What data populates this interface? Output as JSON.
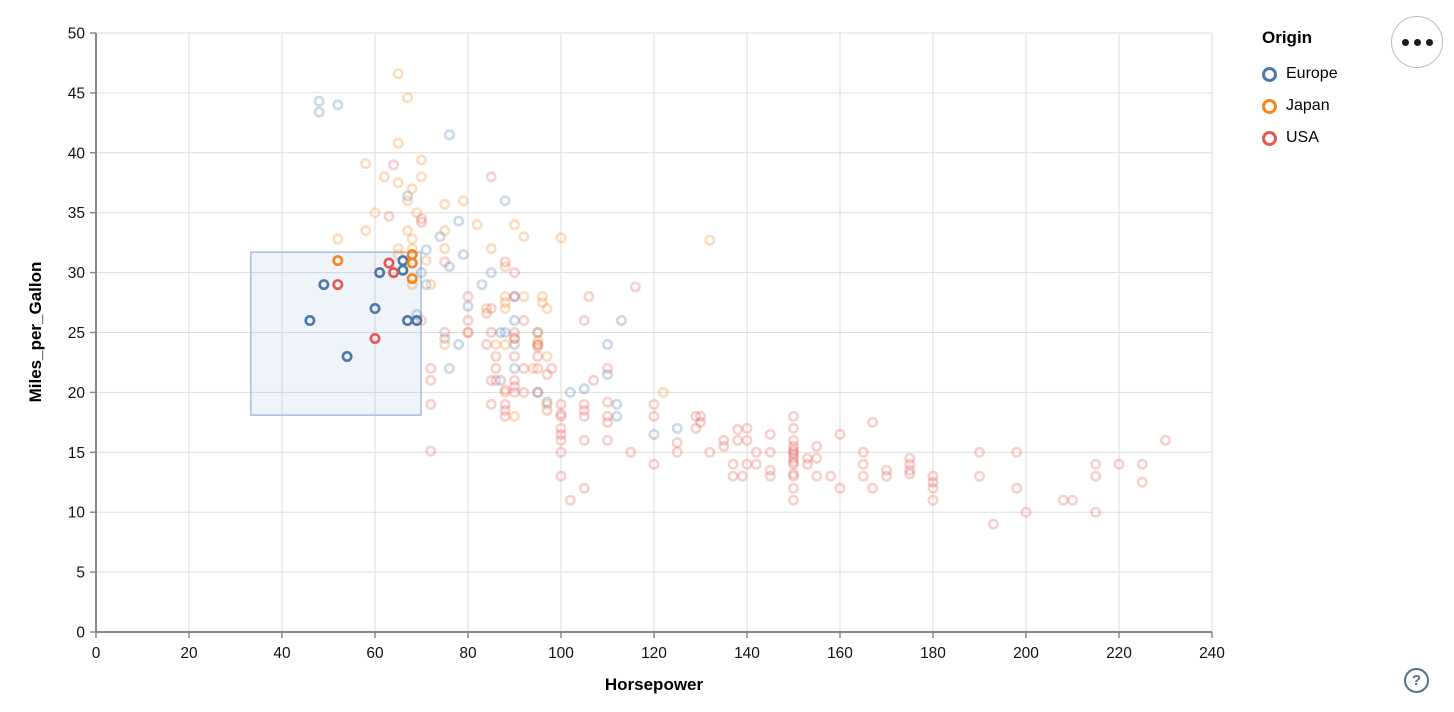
{
  "legend": {
    "title": "Origin",
    "items": [
      {
        "label": "Europe",
        "color": "#4c78a8"
      },
      {
        "label": "Japan",
        "color": "#f58518"
      },
      {
        "label": "USA",
        "color": "#e45756"
      }
    ]
  },
  "actions": {
    "menu_icon": "ellipsis",
    "help_icon": "?"
  },
  "chart_data": {
    "type": "scatter",
    "title": "",
    "xlabel": "Horsepower",
    "ylabel": "Miles_per_Gallon",
    "xlim": [
      0,
      240
    ],
    "ylim": [
      0,
      50
    ],
    "x_ticks": [
      0,
      20,
      40,
      60,
      80,
      100,
      120,
      140,
      160,
      180,
      200,
      220,
      240
    ],
    "y_ticks": [
      0,
      5,
      10,
      15,
      20,
      25,
      30,
      35,
      40,
      45,
      50
    ],
    "grid": true,
    "legend_position": "top-right",
    "point_shape": "open-circle",
    "unselected_opacity": 0.28,
    "colors": {
      "Europe": "#4c78a8",
      "Japan": "#f58518",
      "USA": "#e45756"
    },
    "grid_color": "#dddddd",
    "axis_color": "#888888",
    "brush": {
      "x": [
        33.3,
        69.9
      ],
      "y": [
        18.1,
        31.7
      ],
      "fill": "rgba(125,160,215,0.12)",
      "stroke": "#a9bfe4"
    },
    "series": [
      {
        "name": "Europe",
        "selected": [
          [
            46,
            26
          ],
          [
            49,
            29
          ],
          [
            54,
            23
          ],
          [
            60,
            27
          ],
          [
            61,
            30
          ],
          [
            66,
            31
          ],
          [
            66,
            30.2
          ],
          [
            67,
            26
          ],
          [
            69,
            26
          ]
        ],
        "unselected": [
          [
            87,
            25
          ],
          [
            90,
            24
          ],
          [
            95,
            25
          ],
          [
            113,
            26
          ],
          [
            90,
            28
          ],
          [
            70,
            30
          ],
          [
            76,
            30.5
          ],
          [
            112,
            18
          ],
          [
            76,
            22
          ],
          [
            87,
            21
          ],
          [
            69,
            26.5
          ],
          [
            90,
            26
          ],
          [
            75,
            24.5
          ],
          [
            83,
            29
          ],
          [
            78,
            24
          ],
          [
            110,
            24
          ],
          [
            95,
            20
          ],
          [
            112,
            19
          ],
          [
            48,
            43.4
          ],
          [
            48,
            44.3
          ],
          [
            52,
            44
          ],
          [
            76,
            41.5
          ],
          [
            71,
            29
          ],
          [
            88,
            25
          ],
          [
            90,
            22
          ],
          [
            125,
            17
          ],
          [
            120,
            16.5
          ],
          [
            78,
            34.3
          ],
          [
            74,
            33
          ],
          [
            97,
            19.2
          ],
          [
            110,
            21.5
          ],
          [
            71,
            31.9
          ],
          [
            88,
            36
          ],
          [
            85,
            30
          ],
          [
            80,
            27.2
          ],
          [
            79,
            31.5
          ],
          [
            67,
            36.4
          ],
          [
            102,
            20
          ],
          [
            105,
            20.3
          ]
        ]
      },
      {
        "name": "Japan",
        "selected": [
          [
            52,
            31
          ],
          [
            68,
            31.5
          ],
          [
            68,
            30.8
          ],
          [
            68,
            29.5
          ]
        ],
        "unselected": [
          [
            95,
            24
          ],
          [
            88,
            27
          ],
          [
            88,
            27.5
          ],
          [
            95,
            25
          ],
          [
            95,
            24.3
          ],
          [
            97,
            19
          ],
          [
            92,
            28
          ],
          [
            94,
            22
          ],
          [
            90,
            18
          ],
          [
            97,
            23
          ],
          [
            122,
            20
          ],
          [
            65,
            31.5
          ],
          [
            69,
            35
          ],
          [
            80,
            25
          ],
          [
            65,
            32
          ],
          [
            96,
            27.5
          ],
          [
            88,
            20
          ],
          [
            75,
            24
          ],
          [
            71,
            31
          ],
          [
            68,
            29
          ],
          [
            88,
            24
          ],
          [
            75,
            33.5
          ],
          [
            70,
            38
          ],
          [
            65,
            37.5
          ],
          [
            58,
            33.5
          ],
          [
            62,
            38
          ],
          [
            68,
            32
          ],
          [
            60,
            35
          ],
          [
            52,
            32.8
          ],
          [
            75,
            32
          ],
          [
            100,
            32.9
          ],
          [
            132,
            32.7
          ],
          [
            90,
            34
          ],
          [
            70,
            39.4
          ],
          [
            58,
            39.1
          ],
          [
            65,
            46.6
          ],
          [
            67,
            44.6
          ],
          [
            65,
            40.8
          ],
          [
            68,
            37
          ],
          [
            88,
            30.5
          ],
          [
            85,
            32
          ],
          [
            92,
            33
          ],
          [
            68,
            32.8
          ],
          [
            75,
            35.7
          ],
          [
            67,
            36
          ],
          [
            67,
            33.5
          ],
          [
            88,
            28
          ],
          [
            97,
            27
          ],
          [
            90,
            24.5
          ],
          [
            96,
            28
          ],
          [
            72,
            29
          ],
          [
            84,
            27
          ],
          [
            86,
            24
          ],
          [
            79,
            36
          ],
          [
            82,
            34
          ]
        ]
      },
      {
        "name": "USA",
        "selected": [
          [
            52,
            29
          ],
          [
            60,
            24.5
          ],
          [
            63,
            30.8
          ],
          [
            64,
            30
          ]
        ],
        "unselected": [
          [
            130,
            18
          ],
          [
            165,
            15
          ],
          [
            150,
            18
          ],
          [
            150,
            16
          ],
          [
            140,
            17
          ],
          [
            198,
            15
          ],
          [
            220,
            14
          ],
          [
            215,
            14
          ],
          [
            225,
            14
          ],
          [
            190,
            15
          ],
          [
            95,
            24
          ],
          [
            95,
            22
          ],
          [
            97,
            18.5
          ],
          [
            85,
            21
          ],
          [
            90,
            21
          ],
          [
            215,
            10
          ],
          [
            200,
            10
          ],
          [
            210,
            11
          ],
          [
            193,
            9
          ],
          [
            100,
            19
          ],
          [
            105,
            16
          ],
          [
            100,
            17
          ],
          [
            88,
            19
          ],
          [
            100,
            18
          ],
          [
            165,
            14
          ],
          [
            175,
            14
          ],
          [
            153,
            14
          ],
          [
            150,
            14
          ],
          [
            180,
            12
          ],
          [
            170,
            13
          ],
          [
            175,
            13.5
          ],
          [
            110,
            18
          ],
          [
            72,
            22
          ],
          [
            88,
            18
          ],
          [
            86,
            23
          ],
          [
            90,
            28
          ],
          [
            70,
            26
          ],
          [
            80,
            25
          ],
          [
            90,
            20
          ],
          [
            86,
            21
          ],
          [
            165,
            13
          ],
          [
            175,
            14.5
          ],
          [
            150,
            15
          ],
          [
            153,
            14.5
          ],
          [
            150,
            17
          ],
          [
            208,
            11
          ],
          [
            155,
            13
          ],
          [
            160,
            12
          ],
          [
            190,
            13
          ],
          [
            145,
            13
          ],
          [
            137,
            13
          ],
          [
            150,
            14.2
          ],
          [
            86,
            22
          ],
          [
            80,
            28
          ],
          [
            175,
            13.2
          ],
          [
            145,
            13.5
          ],
          [
            137,
            14
          ],
          [
            150,
            15.5
          ],
          [
            198,
            12
          ],
          [
            150,
            13
          ],
          [
            158,
            13
          ],
          [
            215,
            13
          ],
          [
            225,
            12.5
          ],
          [
            105,
            18
          ],
          [
            100,
            16
          ],
          [
            88,
            18.5
          ],
          [
            95,
            23
          ],
          [
            150,
            11
          ],
          [
            167,
            12
          ],
          [
            170,
            13.5
          ],
          [
            180,
            12.5
          ],
          [
            100,
            18.2
          ],
          [
            72,
            21
          ],
          [
            85,
            19
          ],
          [
            107,
            21
          ],
          [
            145,
            15
          ],
          [
            230,
            16
          ],
          [
            150,
            15.2
          ],
          [
            180,
            11
          ],
          [
            95,
            20
          ],
          [
            100,
            15
          ],
          [
            80,
            26
          ],
          [
            75,
            25
          ],
          [
            100,
            16.5
          ],
          [
            110,
            16
          ],
          [
            105,
            18.5
          ],
          [
            140,
            16
          ],
          [
            150,
            13.2
          ],
          [
            140,
            14
          ],
          [
            150,
            14.5
          ],
          [
            90,
            20.5
          ],
          [
            72,
            19
          ],
          [
            97,
            21.5
          ],
          [
            90,
            23
          ],
          [
            95,
            23.8
          ],
          [
            105,
            19
          ],
          [
            85,
            25
          ],
          [
            110,
            17.5
          ],
          [
            120,
            19
          ],
          [
            145,
            16.5
          ],
          [
            129,
            17
          ],
          [
            138,
            16
          ],
          [
            135,
            15.5
          ],
          [
            155,
            14.5
          ],
          [
            142,
            14
          ],
          [
            125,
            15
          ],
          [
            150,
            14.8
          ],
          [
            72,
            15.1
          ],
          [
            90,
            30
          ],
          [
            63,
            34.7
          ],
          [
            70,
            34.2
          ],
          [
            70,
            34.5
          ],
          [
            75,
            30.9
          ],
          [
            90,
            24.5
          ],
          [
            88,
            30.9
          ],
          [
            85,
            38
          ],
          [
            105,
            26
          ],
          [
            92,
            20
          ],
          [
            84,
            26.6
          ],
          [
            92,
            22
          ],
          [
            110,
            22
          ],
          [
            84,
            24
          ],
          [
            88,
            20.2
          ],
          [
            85,
            27
          ],
          [
            90,
            25
          ],
          [
            110,
            19.2
          ],
          [
            130,
            17.5
          ],
          [
            129,
            18
          ],
          [
            138,
            16.9
          ],
          [
            135,
            16
          ],
          [
            155,
            15.5
          ],
          [
            142,
            15
          ],
          [
            125,
            15.8
          ],
          [
            115,
            15
          ],
          [
            120,
            14
          ],
          [
            102,
            11
          ],
          [
            100,
            13
          ],
          [
            105,
            12
          ],
          [
            150,
            12
          ],
          [
            180,
            13
          ],
          [
            64,
            39
          ],
          [
            167,
            17.5
          ],
          [
            132,
            15
          ],
          [
            160,
            16.5
          ],
          [
            139,
            13
          ],
          [
            120,
            18
          ],
          [
            116,
            28.8
          ],
          [
            106,
            28
          ],
          [
            92,
            26
          ],
          [
            98,
            22
          ]
        ]
      }
    ]
  }
}
